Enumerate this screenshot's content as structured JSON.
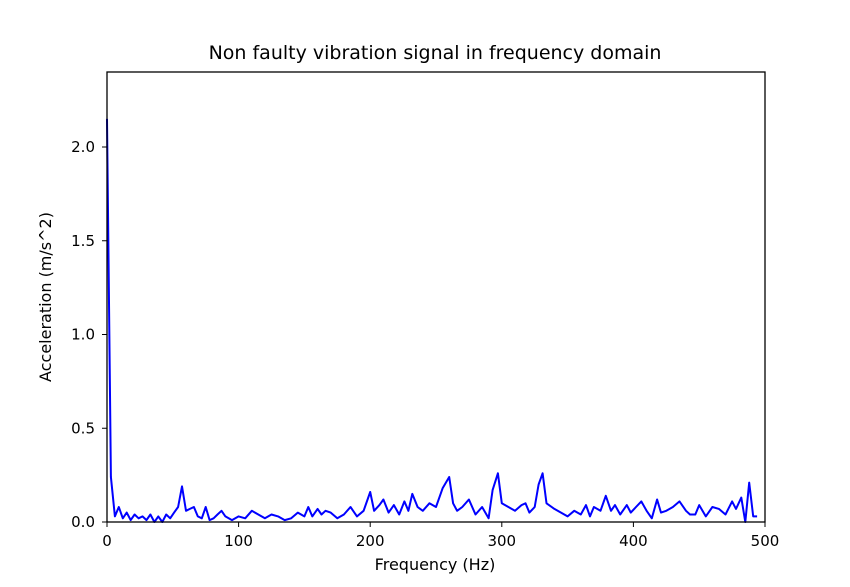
{
  "chart_data": {
    "type": "line",
    "title": "Non faulty vibration signal in frequency domain",
    "xlabel": "Frequency (Hz)",
    "ylabel": "Acceleration (m/s^2)",
    "xlim": [
      0,
      500
    ],
    "ylim": [
      0,
      2.4
    ],
    "xticks": [
      0,
      100,
      200,
      300,
      400,
      500
    ],
    "xtick_labels": [
      "0",
      "100",
      "200",
      "300",
      "400",
      "500"
    ],
    "yticks": [
      0.0,
      0.5,
      1.0,
      1.5,
      2.0
    ],
    "ytick_labels": [
      "0.0",
      "0.5",
      "1.0",
      "1.5",
      "2.0"
    ],
    "grid": false,
    "series": [
      {
        "color": "#0000ff",
        "x": [
          0,
          3,
          6,
          9,
          12,
          15,
          18,
          21,
          24,
          27,
          30,
          33,
          36,
          39,
          42,
          45,
          48,
          51,
          54,
          57,
          60,
          63,
          66,
          69,
          72,
          75,
          78,
          81,
          84,
          87,
          90,
          95,
          100,
          105,
          110,
          115,
          120,
          125,
          130,
          135,
          140,
          145,
          150,
          153,
          156,
          160,
          163,
          166,
          170,
          175,
          180,
          185,
          190,
          195,
          200,
          203,
          207,
          210,
          214,
          218,
          222,
          226,
          229,
          232,
          236,
          240,
          245,
          250,
          255,
          260,
          263,
          266,
          270,
          275,
          280,
          285,
          290,
          293,
          297,
          300,
          305,
          310,
          315,
          318,
          321,
          325,
          328,
          331,
          334,
          340,
          345,
          350,
          355,
          360,
          364,
          367,
          370,
          375,
          379,
          383,
          386,
          390,
          395,
          398,
          402,
          406,
          410,
          414,
          418,
          421,
          425,
          430,
          435,
          440,
          443,
          447,
          450,
          455,
          460,
          465,
          470,
          475,
          478,
          482,
          485,
          488,
          491,
          494
        ],
        "y": [
          2.15,
          0.24,
          0.03,
          0.08,
          0.02,
          0.05,
          0.01,
          0.04,
          0.02,
          0.03,
          0.01,
          0.04,
          0.0,
          0.03,
          0.0,
          0.04,
          0.02,
          0.05,
          0.08,
          0.19,
          0.06,
          0.07,
          0.08,
          0.03,
          0.02,
          0.08,
          0.01,
          0.02,
          0.04,
          0.06,
          0.03,
          0.01,
          0.03,
          0.02,
          0.06,
          0.04,
          0.02,
          0.04,
          0.03,
          0.01,
          0.02,
          0.05,
          0.03,
          0.08,
          0.03,
          0.07,
          0.04,
          0.06,
          0.05,
          0.02,
          0.04,
          0.08,
          0.03,
          0.06,
          0.16,
          0.06,
          0.09,
          0.12,
          0.05,
          0.09,
          0.04,
          0.11,
          0.06,
          0.15,
          0.08,
          0.06,
          0.1,
          0.08,
          0.18,
          0.24,
          0.1,
          0.06,
          0.08,
          0.12,
          0.04,
          0.08,
          0.02,
          0.17,
          0.26,
          0.1,
          0.08,
          0.06,
          0.09,
          0.1,
          0.05,
          0.08,
          0.2,
          0.26,
          0.1,
          0.07,
          0.05,
          0.03,
          0.06,
          0.04,
          0.09,
          0.03,
          0.08,
          0.06,
          0.14,
          0.06,
          0.09,
          0.04,
          0.09,
          0.05,
          0.08,
          0.11,
          0.06,
          0.02,
          0.12,
          0.05,
          0.06,
          0.08,
          0.11,
          0.06,
          0.04,
          0.04,
          0.09,
          0.03,
          0.08,
          0.07,
          0.04,
          0.11,
          0.07,
          0.13,
          0.0,
          0.21,
          0.03,
          0.03
        ]
      }
    ]
  }
}
